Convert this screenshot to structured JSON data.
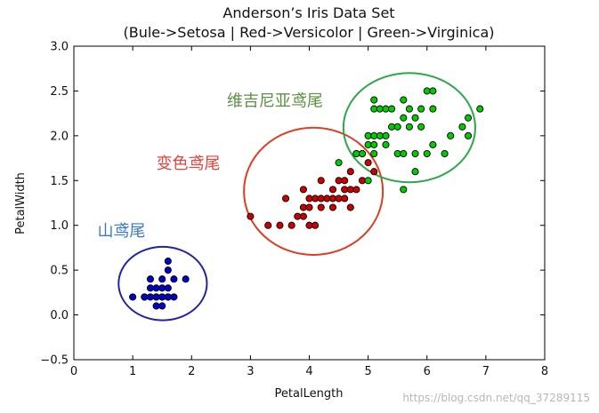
{
  "chart_data": {
    "type": "scatter",
    "title": "Anderson’s Iris Data Set",
    "subtitle": "(Bule->Setosa | Red->Versicolor | Green->Virginica)",
    "xlabel": "PetalLength",
    "ylabel": "PetalWidth",
    "xlim": [
      0,
      8
    ],
    "ylim": [
      -0.5,
      3.0
    ],
    "xticks": [
      "0",
      "1",
      "2",
      "3",
      "4",
      "5",
      "6",
      "7",
      "8"
    ],
    "yticks": [
      "−0.5",
      "0.0",
      "0.5",
      "1.0",
      "1.5",
      "2.0",
      "2.5",
      "3.0"
    ],
    "grid": false,
    "series": [
      {
        "name": "Setosa",
        "color": "#0000cc",
        "points": [
          [
            1.0,
            0.2
          ],
          [
            1.2,
            0.2
          ],
          [
            1.3,
            0.2
          ],
          [
            1.4,
            0.2
          ],
          [
            1.5,
            0.2
          ],
          [
            1.6,
            0.2
          ],
          [
            1.7,
            0.2
          ],
          [
            1.3,
            0.3
          ],
          [
            1.4,
            0.3
          ],
          [
            1.5,
            0.3
          ],
          [
            1.6,
            0.3
          ],
          [
            1.3,
            0.4
          ],
          [
            1.5,
            0.4
          ],
          [
            1.7,
            0.4
          ],
          [
            1.9,
            0.4
          ],
          [
            1.4,
            0.1
          ],
          [
            1.5,
            0.1
          ],
          [
            1.6,
            0.2
          ],
          [
            1.6,
            0.5
          ],
          [
            1.6,
            0.6
          ],
          [
            1.2,
            0.2
          ],
          [
            1.4,
            0.2
          ],
          [
            1.5,
            0.2
          ]
        ]
      },
      {
        "name": "Versicolor",
        "color": "#cc0000",
        "points": [
          [
            3.0,
            1.1
          ],
          [
            3.3,
            1.0
          ],
          [
            3.5,
            1.0
          ],
          [
            3.6,
            1.3
          ],
          [
            3.7,
            1.0
          ],
          [
            3.8,
            1.1
          ],
          [
            3.9,
            1.1
          ],
          [
            3.9,
            1.2
          ],
          [
            3.9,
            1.4
          ],
          [
            4.0,
            1.0
          ],
          [
            4.0,
            1.2
          ],
          [
            4.0,
            1.3
          ],
          [
            4.1,
            1.0
          ],
          [
            4.1,
            1.3
          ],
          [
            4.2,
            1.2
          ],
          [
            4.2,
            1.3
          ],
          [
            4.2,
            1.5
          ],
          [
            4.3,
            1.3
          ],
          [
            4.4,
            1.2
          ],
          [
            4.4,
            1.3
          ],
          [
            4.4,
            1.4
          ],
          [
            4.5,
            1.3
          ],
          [
            4.5,
            1.5
          ],
          [
            4.6,
            1.3
          ],
          [
            4.6,
            1.4
          ],
          [
            4.6,
            1.5
          ],
          [
            4.7,
            1.2
          ],
          [
            4.7,
            1.4
          ],
          [
            4.7,
            1.6
          ],
          [
            4.8,
            1.4
          ],
          [
            4.8,
            1.8
          ],
          [
            4.9,
            1.5
          ],
          [
            4.9,
            1.8
          ],
          [
            5.0,
            1.7
          ],
          [
            5.1,
            1.6
          ]
        ]
      },
      {
        "name": "Virginica",
        "color": "#00cc00",
        "points": [
          [
            4.5,
            1.7
          ],
          [
            4.8,
            1.8
          ],
          [
            4.9,
            1.8
          ],
          [
            5.0,
            1.5
          ],
          [
            5.0,
            1.9
          ],
          [
            5.0,
            2.0
          ],
          [
            5.1,
            1.9
          ],
          [
            5.1,
            2.0
          ],
          [
            5.1,
            2.3
          ],
          [
            5.1,
            2.4
          ],
          [
            5.2,
            2.0
          ],
          [
            5.2,
            2.3
          ],
          [
            5.3,
            1.9
          ],
          [
            5.3,
            2.3
          ],
          [
            5.4,
            2.1
          ],
          [
            5.4,
            2.3
          ],
          [
            5.5,
            1.8
          ],
          [
            5.5,
            2.1
          ],
          [
            5.6,
            1.4
          ],
          [
            5.6,
            1.8
          ],
          [
            5.6,
            2.2
          ],
          [
            5.6,
            2.4
          ],
          [
            5.7,
            2.1
          ],
          [
            5.7,
            2.3
          ],
          [
            5.8,
            1.6
          ],
          [
            5.8,
            1.8
          ],
          [
            5.8,
            2.2
          ],
          [
            5.9,
            2.1
          ],
          [
            5.9,
            2.3
          ],
          [
            6.0,
            1.8
          ],
          [
            6.0,
            2.5
          ],
          [
            6.1,
            1.9
          ],
          [
            6.1,
            2.3
          ],
          [
            6.1,
            2.5
          ],
          [
            6.3,
            1.8
          ],
          [
            6.4,
            2.0
          ],
          [
            6.6,
            2.1
          ],
          [
            6.7,
            2.0
          ],
          [
            6.7,
            2.2
          ],
          [
            6.9,
            2.3
          ],
          [
            5.1,
            1.8
          ],
          [
            5.3,
            2.0
          ]
        ]
      }
    ],
    "ellipses": [
      {
        "cx": 1.51,
        "cy": 0.35,
        "rx": 0.75,
        "ry": 0.41,
        "color": "#2222aa"
      },
      {
        "cx": 4.07,
        "cy": 1.38,
        "rx": 1.18,
        "ry": 0.71,
        "color": "#e03c1e"
      },
      {
        "cx": 5.7,
        "cy": 2.09,
        "rx": 1.12,
        "ry": 0.61,
        "color": "#2aa84a"
      }
    ],
    "annotations": [
      {
        "text": "维吉尼亚鸢尾",
        "x": 2.6,
        "y": 2.33,
        "color": "#5d8f43"
      },
      {
        "text": "变色鸢尾",
        "x": 1.4,
        "y": 1.63,
        "color": "#e0443a"
      },
      {
        "text": "山鸢尾",
        "x": 0.4,
        "y": 0.88,
        "color": "#3b7ac8"
      }
    ]
  },
  "watermark": "https://blog.csdn.net/qq_37289115"
}
